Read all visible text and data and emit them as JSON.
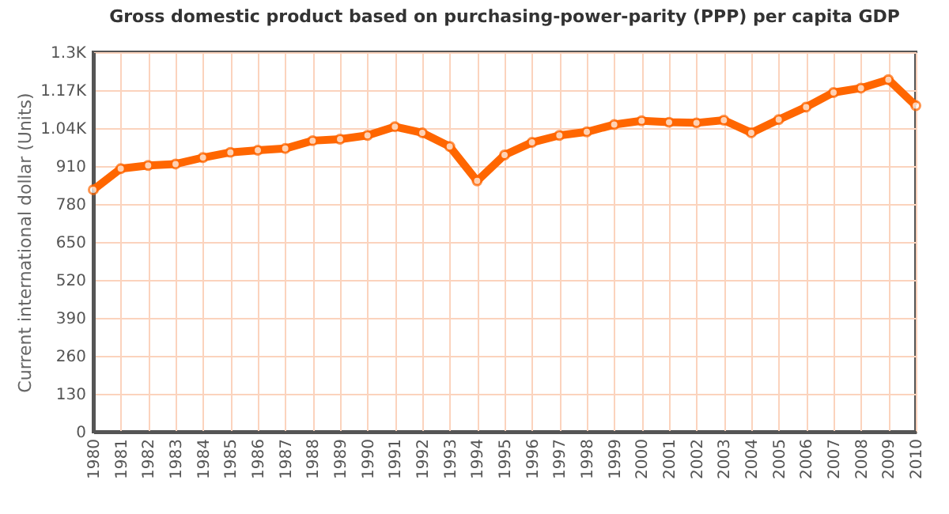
{
  "chart_data": {
    "type": "line",
    "title": "Gross domestic product based on purchasing-power-parity (PPP) per capita GDP",
    "ylabel": "Current international dollar (Units)",
    "categories": [
      "1980",
      "1981",
      "1982",
      "1983",
      "1984",
      "1985",
      "1986",
      "1987",
      "1988",
      "1989",
      "1990",
      "1991",
      "1992",
      "1993",
      "1994",
      "1995",
      "1996",
      "1997",
      "1998",
      "1999",
      "2000",
      "2001",
      "2002",
      "2003",
      "2004",
      "2005",
      "2006",
      "2007",
      "2008",
      "2009",
      "2010"
    ],
    "series": [
      {
        "color": "#ff6600",
        "values": [
          829,
          901,
          912,
          917,
          939,
          957,
          964,
          970,
          997,
          1002,
          1015,
          1045,
          1024,
          977,
          859,
          948,
          991,
          1015,
          1027,
          1052,
          1065,
          1060,
          1058,
          1067,
          1024,
          1069,
          1112,
          1162,
          1177,
          1206,
          1117
        ]
      }
    ],
    "ylim": [
      0,
      1300
    ],
    "yticks": [
      0,
      130,
      260,
      390,
      520,
      650,
      780,
      910,
      {
        "value": 1040,
        "label": "1.04K"
      },
      {
        "value": 1170,
        "label": "1.17K"
      },
      {
        "value": 1300,
        "label": "1.3K"
      }
    ],
    "grid": true,
    "marker": "circle",
    "line_style": "solid",
    "legend": false
  }
}
